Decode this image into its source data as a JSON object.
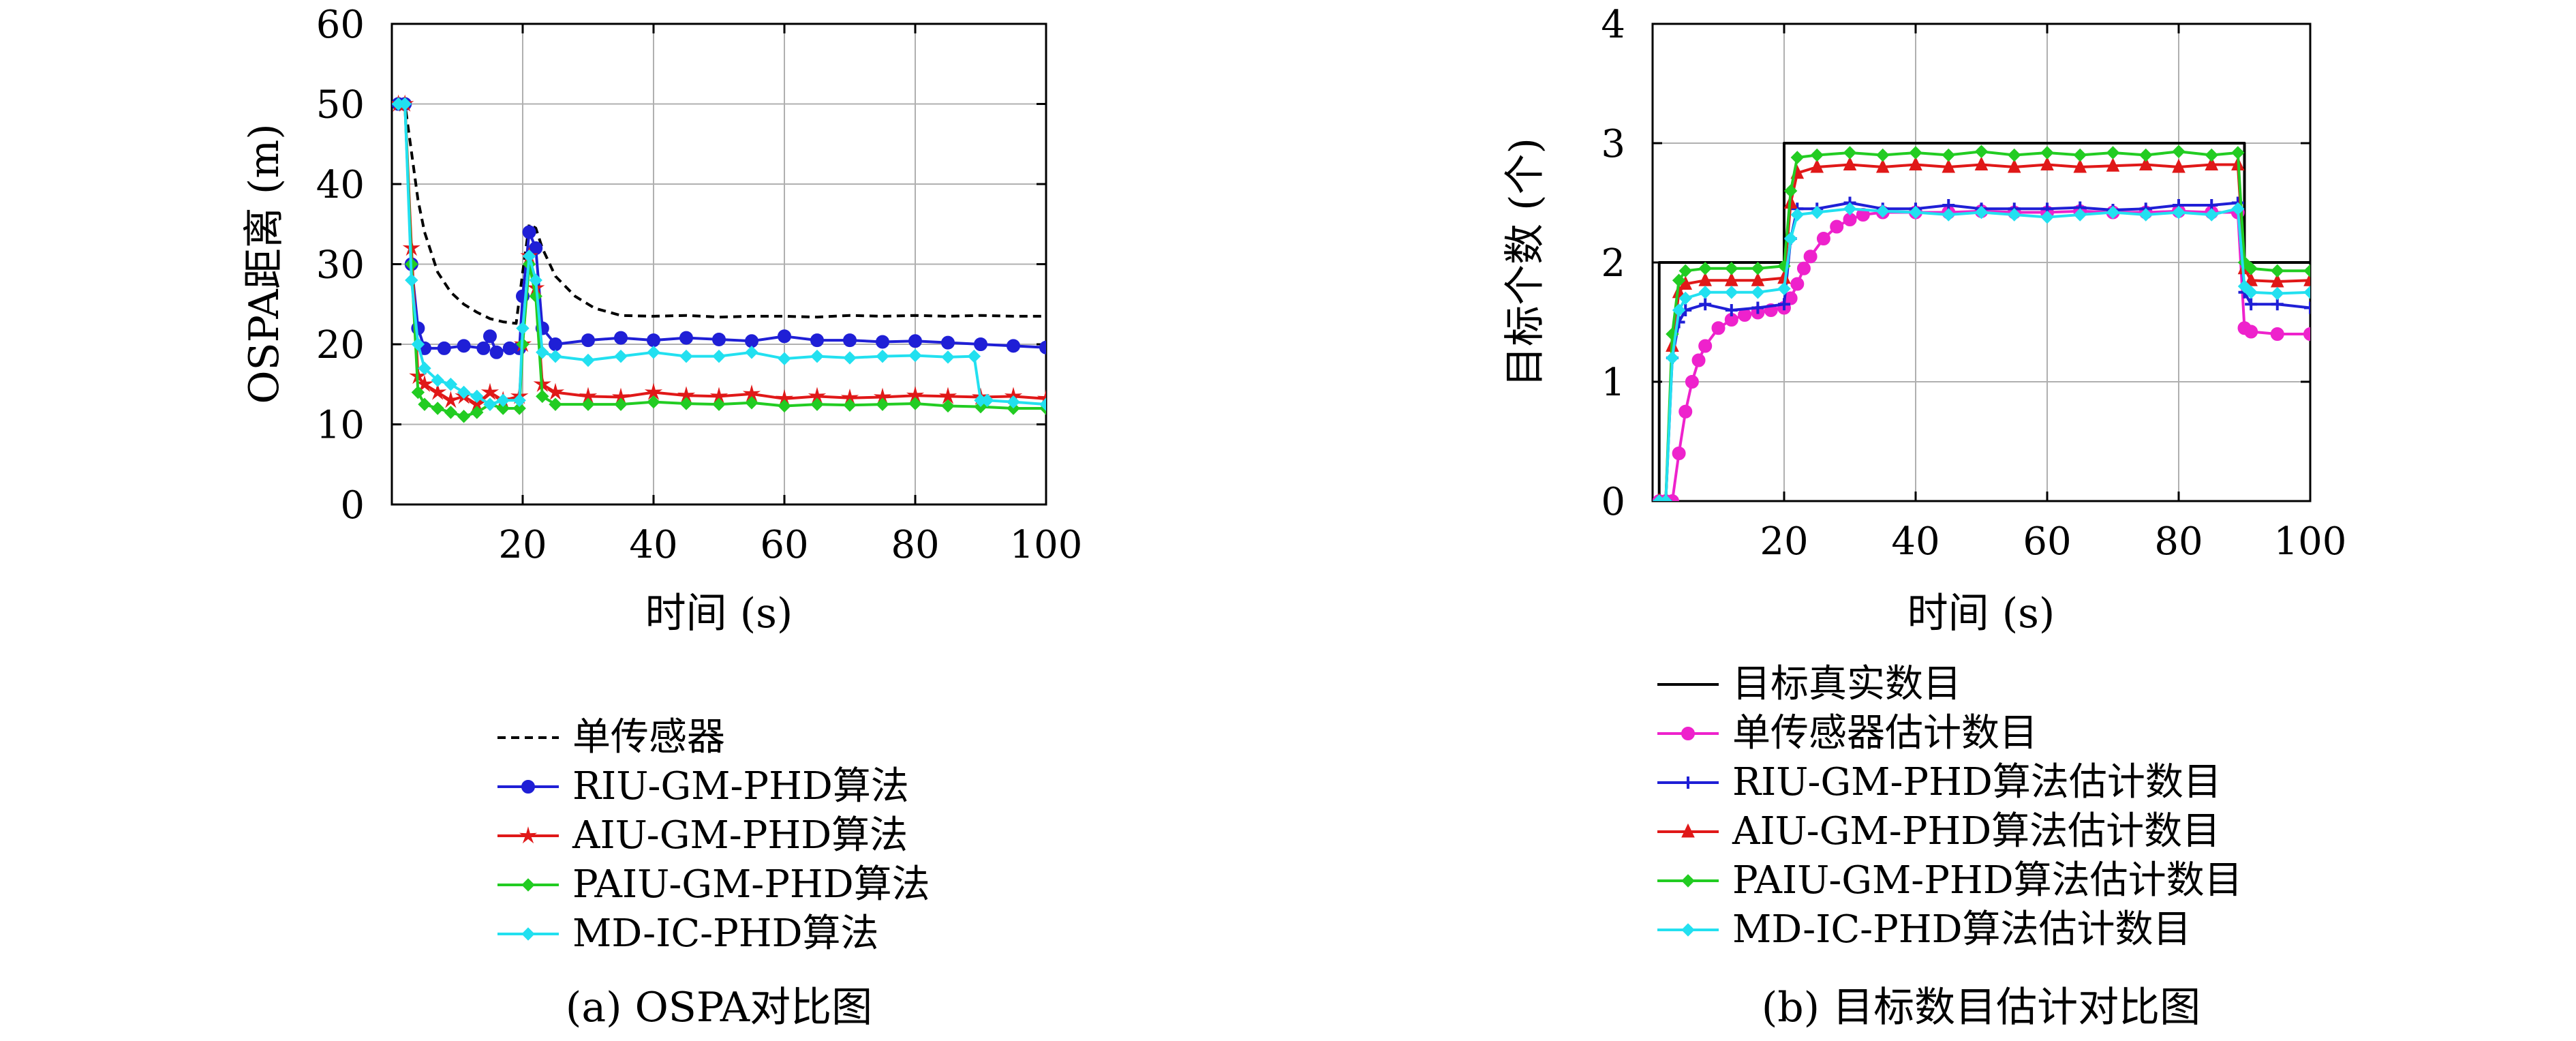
{
  "chart_data": [
    {
      "type": "line",
      "caption": "(a) OSPA对比图",
      "xlabel": "时间 (s)",
      "ylabel": "OSPA距离 (m)",
      "xlim": [
        0,
        100
      ],
      "ylim": [
        0,
        60
      ],
      "xticks": [
        20,
        40,
        60,
        80,
        100
      ],
      "yticks": [
        0,
        10,
        20,
        30,
        40,
        50,
        60
      ],
      "grid": true,
      "legend_position": "below",
      "series": [
        {
          "name": "单传感器",
          "color": "#000000",
          "dash": "dashed",
          "marker": "none",
          "x": [
            1,
            2,
            3,
            4,
            5,
            7,
            9,
            11,
            13,
            15,
            17,
            19,
            20,
            21,
            22,
            23,
            25,
            28,
            31,
            35,
            40,
            45,
            50,
            55,
            60,
            65,
            70,
            75,
            80,
            85,
            90,
            95,
            100
          ],
          "y": [
            50,
            50,
            44,
            38,
            34,
            29,
            26.5,
            25,
            24,
            23.2,
            22.8,
            22.6,
            29,
            35,
            34.5,
            32,
            28.5,
            26,
            24.5,
            23.6,
            23.5,
            23.6,
            23.4,
            23.5,
            23.5,
            23.4,
            23.6,
            23.5,
            23.6,
            23.5,
            23.6,
            23.5,
            23.5
          ]
        },
        {
          "name": "RIU-GM-PHD算法",
          "color": "#1f1fd6",
          "dash": "solid",
          "marker": "circle",
          "x": [
            1,
            2,
            3,
            4,
            5,
            8,
            11,
            14,
            15,
            16,
            18,
            19.5,
            20,
            21,
            22,
            23,
            25,
            30,
            35,
            40,
            45,
            50,
            55,
            60,
            65,
            70,
            75,
            80,
            85,
            90,
            95,
            100
          ],
          "y": [
            50,
            50,
            30,
            22,
            19.5,
            19.5,
            19.8,
            19.5,
            21,
            19,
            19.5,
            19.5,
            26,
            34,
            32,
            22,
            20,
            20.5,
            20.8,
            20.5,
            20.8,
            20.6,
            20.4,
            21,
            20.5,
            20.5,
            20.3,
            20.4,
            20.2,
            20,
            19.8,
            19.6
          ]
        },
        {
          "name": "AIU-GM-PHD算法",
          "color": "#e01818",
          "dash": "solid",
          "marker": "star",
          "x": [
            1,
            2,
            3,
            4,
            5,
            7,
            9,
            11,
            13,
            15,
            17,
            19.5,
            20,
            21,
            22,
            23,
            25,
            30,
            35,
            40,
            45,
            50,
            55,
            60,
            65,
            70,
            75,
            80,
            85,
            90,
            95,
            100
          ],
          "y": [
            50,
            50,
            32,
            16,
            15,
            14,
            13,
            13.5,
            12.5,
            14,
            13,
            13.5,
            20,
            31,
            27,
            15,
            14,
            13.5,
            13.4,
            14,
            13.6,
            13.5,
            13.8,
            13.2,
            13.5,
            13.3,
            13.4,
            13.6,
            13.5,
            13.4,
            13.5,
            13.2
          ]
        },
        {
          "name": "PAIU-GM-PHD算法",
          "color": "#22cc22",
          "dash": "solid",
          "marker": "diamond",
          "x": [
            1,
            2,
            3,
            4,
            5,
            7,
            9,
            11,
            13,
            15,
            17,
            19.5,
            20,
            21,
            22,
            23,
            25,
            30,
            35,
            40,
            45,
            50,
            55,
            60,
            65,
            70,
            75,
            80,
            85,
            90,
            95,
            100
          ],
          "y": [
            50,
            50,
            30,
            14,
            12.5,
            12,
            11.5,
            11,
            11.5,
            12.5,
            12,
            12,
            20,
            30,
            26,
            13.5,
            12.5,
            12.5,
            12.5,
            12.8,
            12.6,
            12.5,
            12.7,
            12.3,
            12.5,
            12.4,
            12.5,
            12.6,
            12.3,
            12.2,
            12,
            12
          ]
        },
        {
          "name": "MD-IC-PHD算法",
          "color": "#22e0f0",
          "dash": "solid",
          "marker": "diamond",
          "x": [
            1,
            2,
            3,
            4,
            5,
            7,
            9,
            11,
            13,
            15,
            17,
            19.5,
            20,
            21,
            22,
            23,
            25,
            30,
            35,
            40,
            45,
            50,
            55,
            60,
            65,
            70,
            75,
            80,
            85,
            89,
            90,
            91,
            95,
            100
          ],
          "y": [
            50,
            50,
            28,
            20,
            17,
            15.5,
            15,
            14,
            13.5,
            12.5,
            13,
            13,
            22,
            31,
            28,
            19,
            18.5,
            18,
            18.5,
            19,
            18.5,
            18.5,
            19,
            18.2,
            18.5,
            18.3,
            18.5,
            18.6,
            18.4,
            18.5,
            13,
            13,
            12.8,
            12.5
          ]
        }
      ]
    },
    {
      "type": "line",
      "caption": "(b) 目标数目估计对比图",
      "xlabel": "时间 (s)",
      "ylabel": "目标个数 (个)",
      "xlim": [
        0,
        100
      ],
      "ylim": [
        0,
        4
      ],
      "xticks": [
        20,
        40,
        60,
        80,
        100
      ],
      "yticks": [
        0,
        1,
        2,
        3,
        4
      ],
      "grid": true,
      "legend_position": "below",
      "series": [
        {
          "name": "目标真实数目",
          "color": "#000000",
          "dash": "solid",
          "marker": "none",
          "x": [
            1,
            1,
            1,
            20,
            20,
            90,
            90,
            100
          ],
          "y": [
            0,
            0,
            2,
            2,
            3,
            3,
            2,
            2
          ]
        },
        {
          "name": "单传感器估计数目",
          "color": "#ee22cc",
          "dash": "solid",
          "marker": "circle",
          "x": [
            1,
            2,
            3,
            4,
            5,
            6,
            7,
            8,
            10,
            12,
            14,
            16,
            18,
            20,
            21,
            22,
            23,
            24,
            26,
            28,
            30,
            32,
            35,
            40,
            45,
            50,
            55,
            60,
            65,
            70,
            75,
            80,
            85,
            89,
            90,
            91,
            95,
            100
          ],
          "y": [
            0,
            0,
            0,
            0.4,
            0.75,
            1.0,
            1.18,
            1.3,
            1.45,
            1.52,
            1.56,
            1.58,
            1.6,
            1.62,
            1.7,
            1.82,
            1.95,
            2.05,
            2.2,
            2.3,
            2.36,
            2.4,
            2.42,
            2.42,
            2.42,
            2.43,
            2.42,
            2.42,
            2.43,
            2.42,
            2.42,
            2.43,
            2.42,
            2.42,
            1.45,
            1.42,
            1.4,
            1.4
          ]
        },
        {
          "name": "RIU-GM-PHD算法估计数目",
          "color": "#1f1fd6",
          "dash": "solid",
          "marker": "plus",
          "x": [
            1,
            2,
            3,
            4,
            5,
            8,
            12,
            16,
            20,
            21,
            22,
            25,
            30,
            35,
            40,
            45,
            50,
            55,
            60,
            65,
            70,
            75,
            80,
            85,
            89,
            90,
            91,
            95,
            100
          ],
          "y": [
            0,
            0,
            1.2,
            1.5,
            1.6,
            1.65,
            1.6,
            1.62,
            1.65,
            2.2,
            2.45,
            2.45,
            2.5,
            2.45,
            2.45,
            2.48,
            2.45,
            2.45,
            2.45,
            2.46,
            2.44,
            2.45,
            2.48,
            2.48,
            2.5,
            1.75,
            1.65,
            1.65,
            1.62
          ]
        },
        {
          "name": "AIU-GM-PHD算法估计数目",
          "color": "#e01818",
          "dash": "solid",
          "marker": "triangle",
          "x": [
            1,
            2,
            3,
            4,
            5,
            8,
            12,
            16,
            20,
            21,
            22,
            25,
            30,
            35,
            40,
            45,
            50,
            55,
            60,
            65,
            70,
            75,
            80,
            85,
            89,
            90,
            91,
            95,
            100
          ],
          "y": [
            0,
            0,
            1.3,
            1.75,
            1.82,
            1.85,
            1.85,
            1.85,
            1.87,
            2.5,
            2.75,
            2.8,
            2.82,
            2.8,
            2.82,
            2.8,
            2.82,
            2.8,
            2.82,
            2.8,
            2.81,
            2.82,
            2.8,
            2.82,
            2.82,
            1.95,
            1.85,
            1.84,
            1.85
          ]
        },
        {
          "name": "PAIU-GM-PHD算法估计数目",
          "color": "#22cc22",
          "dash": "solid",
          "marker": "diamond",
          "x": [
            1,
            2,
            3,
            4,
            5,
            8,
            12,
            16,
            20,
            21,
            22,
            25,
            30,
            35,
            40,
            45,
            50,
            55,
            60,
            65,
            70,
            75,
            80,
            85,
            89,
            90,
            91,
            95,
            100
          ],
          "y": [
            0,
            0,
            1.4,
            1.85,
            1.93,
            1.95,
            1.95,
            1.95,
            1.97,
            2.6,
            2.88,
            2.9,
            2.92,
            2.9,
            2.92,
            2.9,
            2.93,
            2.9,
            2.92,
            2.9,
            2.92,
            2.9,
            2.93,
            2.9,
            2.92,
            2.0,
            1.95,
            1.93,
            1.93
          ]
        },
        {
          "name": "MD-IC-PHD算法估计数目",
          "color": "#22e0f0",
          "dash": "solid",
          "marker": "diamond",
          "x": [
            1,
            2,
            3,
            4,
            5,
            8,
            12,
            16,
            20,
            21,
            22,
            25,
            30,
            35,
            40,
            45,
            50,
            55,
            60,
            65,
            70,
            75,
            80,
            85,
            89,
            90,
            91,
            95,
            100
          ],
          "y": [
            0,
            0,
            1.2,
            1.6,
            1.7,
            1.75,
            1.75,
            1.75,
            1.78,
            2.2,
            2.4,
            2.42,
            2.45,
            2.43,
            2.42,
            2.4,
            2.42,
            2.4,
            2.38,
            2.4,
            2.42,
            2.4,
            2.42,
            2.4,
            2.45,
            1.8,
            1.75,
            1.74,
            1.75
          ]
        }
      ]
    }
  ]
}
